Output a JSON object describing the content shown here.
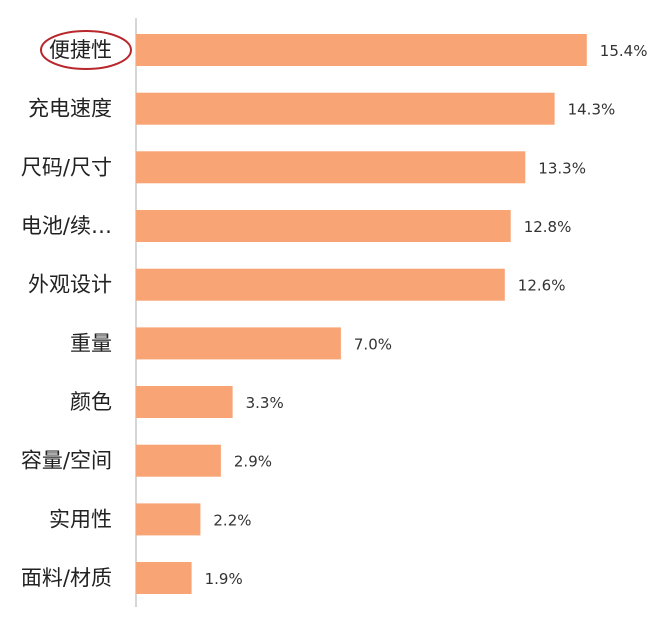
{
  "chart_data": {
    "type": "bar",
    "orientation": "horizontal",
    "categories": [
      "便捷性",
      "充电速度",
      "尺码/尺寸",
      "电池/续…",
      "外观设计",
      "重量",
      "颜色",
      "容量/空间",
      "实用性",
      "面料/材质"
    ],
    "values": [
      15.4,
      14.3,
      13.3,
      12.8,
      12.6,
      7.0,
      3.3,
      2.9,
      2.2,
      1.9
    ],
    "value_labels": [
      "15.4%",
      "14.3%",
      "13.3%",
      "12.8%",
      "12.6%",
      "7.0%",
      "3.3%",
      "2.9%",
      "2.2%",
      "1.9%"
    ],
    "xlim": [
      0,
      16.5
    ],
    "bar_color": "#f9a474",
    "axis_color": "#c8c8c8",
    "highlight_category": "便捷性",
    "highlight_color": "#b8272c",
    "grid": false
  }
}
